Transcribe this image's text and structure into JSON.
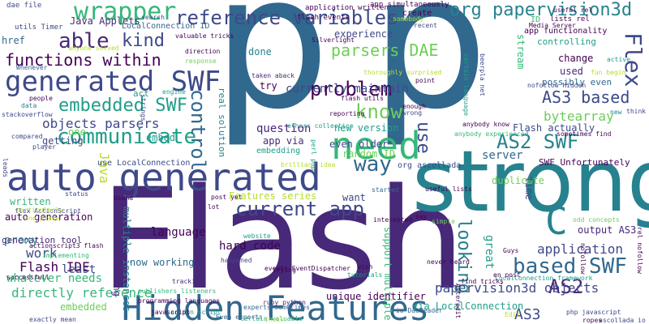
{
  "word_cloud": {
    "background": "#ffffff",
    "palette": [
      "#440154",
      "#482878",
      "#3e4989",
      "#31688e",
      "#26828e",
      "#1f9e89",
      "#35b779",
      "#6ece58",
      "#b5de2b",
      "#fde725"
    ],
    "words": [
      {
        "text": "p",
        "color": "#31688e"
      },
      {
        "text": "p",
        "color": "#31688e"
      },
      {
        "text": "Flash",
        "color": "#482878"
      },
      {
        "text": "strong",
        "color": "#26828e"
      },
      {
        "text": "auto generated",
        "color": "#3e4989"
      },
      {
        "text": "Hidden Features",
        "color": "#31688e"
      },
      {
        "text": "generated SWF",
        "color": "#3e4989"
      },
      {
        "text": "need",
        "color": "#35b779"
      },
      {
        "text": "reference variables",
        "color": "#3e4989"
      },
      {
        "text": "org papervision3d",
        "color": "#26828e"
      },
      {
        "text": "wrapper",
        "color": "#35b779"
      },
      {
        "text": "functions within",
        "color": "#440154"
      },
      {
        "text": "able",
        "color": "#482878"
      },
      {
        "text": "kind",
        "color": "#3e4989"
      },
      {
        "text": "parsers DAE",
        "color": "#6ece58"
      },
      {
        "text": "embedded SWF",
        "color": "#1f9e89"
      },
      {
        "text": "objects parsers",
        "color": "#3e4989"
      },
      {
        "text": "communicate",
        "color": "#1f9e89"
      },
      {
        "text": "current app",
        "color": "#3e4989"
      },
      {
        "text": "AS2 SWF",
        "color": "#26828e"
      },
      {
        "text": "AS3 based",
        "color": "#3e4989"
      },
      {
        "text": "based SWF",
        "color": "#31688e"
      },
      {
        "text": "AS2",
        "color": "#482878"
      },
      {
        "text": "AS3",
        "color": "#3e4989"
      },
      {
        "text": "C",
        "color": "#26828e"
      },
      {
        "text": "Flex",
        "color": "#3e4989"
      },
      {
        "text": "problem",
        "color": "#440154"
      },
      {
        "text": "know",
        "color": "#6ece58"
      },
      {
        "text": "way",
        "color": "#31688e"
      },
      {
        "text": "control",
        "color": "#31688e"
      },
      {
        "text": "use",
        "color": "#3e4989"
      },
      {
        "text": "bytearray",
        "color": "#6ece58"
      },
      {
        "text": "Flash actually",
        "color": "#3e4989"
      },
      {
        "text": "papervision3d objects",
        "color": "#3e4989"
      },
      {
        "text": "language",
        "color": "#440154"
      },
      {
        "text": "hard code",
        "color": "#440154"
      },
      {
        "text": "looking",
        "color": "#26828e"
      },
      {
        "text": "application",
        "color": "#3e4989"
      },
      {
        "text": "output AS3",
        "color": "#482878"
      },
      {
        "text": "Flash IDE",
        "color": "#440154"
      },
      {
        "text": "directly reference",
        "color": "#35b779"
      },
      {
        "text": "embedded",
        "color": "#6ece58"
      },
      {
        "text": "whatever needs",
        "color": "#35b779"
      },
      {
        "text": "least",
        "color": "#3e4989"
      },
      {
        "text": "proxy",
        "color": "#1f9e89"
      },
      {
        "text": "work",
        "color": "#3e4989"
      },
      {
        "text": "Java",
        "color": "#b5de2b"
      },
      {
        "text": "written",
        "color": "#35b779"
      },
      {
        "text": "auto generation",
        "color": "#440154"
      },
      {
        "text": "generation tool",
        "color": "#482878"
      },
      {
        "text": "Features series",
        "color": "#b5de2b"
      },
      {
        "text": "now working",
        "color": "#31688e"
      },
      {
        "text": "currently maintain",
        "color": "#3e4989"
      },
      {
        "text": "question",
        "color": "#482878"
      },
      {
        "text": "new version",
        "color": "#1f9e89"
      },
      {
        "text": "even older",
        "color": "#3e4989"
      },
      {
        "text": "random ID",
        "color": "#6ece58"
      },
      {
        "text": "server",
        "color": "#31688e"
      },
      {
        "text": "duplicate",
        "color": "#6ece58"
      },
      {
        "text": "SWF Unfortunately",
        "color": "#440154"
      },
      {
        "text": "experience",
        "color": "#3e4989"
      },
      {
        "text": "done",
        "color": "#26828e"
      },
      {
        "text": "try",
        "color": "#440154"
      },
      {
        "text": "app via",
        "color": "#482878"
      },
      {
        "text": "embedding",
        "color": "#1f9e89"
      },
      {
        "text": "getting",
        "color": "#3e4989"
      },
      {
        "text": "embed",
        "color": "#1f9e89"
      },
      {
        "text": "one",
        "color": "#6ece58"
      },
      {
        "text": "act",
        "color": "#1f9e89"
      },
      {
        "text": "href",
        "color": "#31688e"
      },
      {
        "text": "Java Applets",
        "color": "#482878"
      },
      {
        "text": "LocalConnection ID",
        "color": "#31688e"
      },
      {
        "text": "create",
        "color": "#440154"
      },
      {
        "text": "ID",
        "color": "#35b779"
      },
      {
        "text": "app functionality",
        "color": "#440154"
      },
      {
        "text": "controlling",
        "color": "#1f9e89"
      },
      {
        "text": "change",
        "color": "#440154"
      },
      {
        "text": "used",
        "color": "#482878"
      },
      {
        "text": "possibly even",
        "color": "#31688e"
      },
      {
        "text": "stream",
        "color": "#35b779"
      },
      {
        "text": "time",
        "color": "#3e4989"
      },
      {
        "text": "want",
        "color": "#3e4989"
      },
      {
        "text": "great",
        "color": "#1f9e89"
      },
      {
        "text": "support multiple",
        "color": "#35b779"
      },
      {
        "text": "unique identifier",
        "color": "#440154"
      },
      {
        "text": "via LocalConnection",
        "color": "#1f9e89"
      },
      {
        "text": "use LocalConnection",
        "color": "#3e4989"
      },
      {
        "text": "org ascollada",
        "color": "#3e4989"
      },
      {
        "text": "multiple instances",
        "color": "#26828e"
      },
      {
        "text": "communicating",
        "color": "#482878"
      },
      {
        "text": "real solution",
        "color": "#26828e"
      },
      {
        "text": "flash events",
        "color": "#440154"
      },
      {
        "text": "application written",
        "color": "#440154"
      },
      {
        "text": "app simultaneously",
        "color": "#440154"
      },
      {
        "text": "lists rel",
        "color": "#440154"
      },
      {
        "text": "utils Timer",
        "color": "#3e4989"
      },
      {
        "text": "dae file",
        "color": "#3e4989"
      },
      {
        "text": "anyone solved",
        "color": "#b5de2b"
      },
      {
        "text": "valuable tricks",
        "color": "#440154"
      },
      {
        "text": "Whenever",
        "color": "#31688e"
      },
      {
        "text": "events EventDispatcher",
        "color": "#440154"
      },
      {
        "text": "publishers listeners",
        "color": "#35b779"
      },
      {
        "text": "programming languages",
        "color": "#440154"
      },
      {
        "text": "tracking",
        "color": "#482878"
      },
      {
        "text": "stackoverflow",
        "color": "#3e4989"
      },
      {
        "text": "ruby python",
        "color": "#482878"
      },
      {
        "text": "Even experts",
        "color": "#31688e"
      },
      {
        "text": "action script",
        "color": "#1f9e89"
      },
      {
        "text": "certain valuable",
        "color": "#35b779"
      },
      {
        "text": "perl php",
        "color": "#1f9e89"
      },
      {
        "text": "LocalConnection framework",
        "color": "#1f9e89"
      },
      {
        "text": "find tricks",
        "color": "#440154"
      },
      {
        "text": "php javascript",
        "color": "#3e4989"
      },
      {
        "text": "ascollada io",
        "color": "#3e4989"
      },
      {
        "text": "en post",
        "color": "#440154"
      },
      {
        "text": "odd concepts",
        "color": "#6ece58"
      },
      {
        "text": "useful lists",
        "color": "#440154"
      },
      {
        "text": "never heard",
        "color": "#440154"
      },
      {
        "text": "anybody know",
        "color": "#440154"
      },
      {
        "text": "anybody experienced",
        "color": "#35b779"
      },
      {
        "text": "nofollow Hidden",
        "color": "#3e4989"
      },
      {
        "text": "fun begin",
        "color": "#b5de2b"
      },
      {
        "text": "Media Server",
        "color": "#440154"
      },
      {
        "text": "sometimes find",
        "color": "#440154"
      },
      {
        "text": "brilliant idea",
        "color": "#b5de2b"
      },
      {
        "text": "flex ActionScript",
        "color": "#3e4989"
      },
      {
        "text": "successfull",
        "color": "#440154"
      },
      {
        "text": "actionscript3 flash",
        "color": "#440154"
      },
      {
        "text": "implementing",
        "color": "#35b779"
      },
      {
        "text": "post yet",
        "color": "#440154"
      },
      {
        "text": "one place",
        "color": "#b5de2b"
      },
      {
        "text": "flash utils",
        "color": "#440154"
      },
      {
        "text": "taken aback",
        "color": "#482878"
      },
      {
        "text": "others collection",
        "color": "#1f9e89"
      },
      {
        "text": "beerpla net",
        "color": "#3e4989"
      },
      {
        "text": "think",
        "color": "#3e4989"
      },
      {
        "text": "new",
        "color": "#26828e"
      },
      {
        "text": "active",
        "color": "#1f9e89"
      },
      {
        "text": "Guys",
        "color": "#440154"
      },
      {
        "text": "say",
        "color": "#440154"
      },
      {
        "text": "simple",
        "color": "#6ece58"
      },
      {
        "text": "javascript",
        "color": "#440154"
      },
      {
        "text": "status",
        "color": "#3e4989"
      },
      {
        "text": "leads",
        "color": "#3e4989"
      },
      {
        "text": "Afteredit",
        "color": "#440154"
      },
      {
        "text": "io DaeReader",
        "color": "#31688e"
      },
      {
        "text": "Edit",
        "color": "#b5de2b"
      },
      {
        "text": "ropes",
        "color": "#440154"
      },
      {
        "text": "interested",
        "color": "#440154"
      },
      {
        "text": "exactly mean",
        "color": "#3e4989"
      },
      {
        "text": "website",
        "color": "#1f9e89"
      },
      {
        "text": "experts sometimes",
        "color": "#31688e"
      },
      {
        "text": "trying",
        "color": "#440154"
      },
      {
        "text": "wish",
        "color": "#440154"
      },
      {
        "text": "check",
        "color": "#b5de2b"
      },
      {
        "text": "tutorials",
        "color": "#1f9e89"
      },
      {
        "text": "happened",
        "color": "#3e4989"
      },
      {
        "text": "started",
        "color": "#31688e"
      },
      {
        "text": "Usend",
        "color": "#440154"
      },
      {
        "text": "compared",
        "color": "#3e4989"
      },
      {
        "text": "player",
        "color": "#3e4989"
      },
      {
        "text": "data",
        "color": "#26828e"
      },
      {
        "text": "people",
        "color": "#440154"
      },
      {
        "text": "reporting",
        "color": "#440154"
      },
      {
        "text": "lot",
        "color": "#440154"
      },
      {
        "text": "recent",
        "color": "#3e4989"
      },
      {
        "text": "search",
        "color": "#3e4989"
      },
      {
        "text": "direction",
        "color": "#440154"
      },
      {
        "text": "response",
        "color": "#6ece58"
      },
      {
        "text": "engine",
        "color": "#1f9e89"
      },
      {
        "text": "Silverlight",
        "color": "#440154"
      },
      {
        "text": "somebody",
        "color": "#b5de2b"
      },
      {
        "text": "nofollow",
        "color": "#440154"
      },
      {
        "text": "point",
        "color": "#440154"
      },
      {
        "text": "enough",
        "color": "#440154"
      },
      {
        "text": "wrong",
        "color": "#3e4989"
      },
      {
        "text": "certain language",
        "color": "#1f9e89"
      },
      {
        "text": "thoroughly surprised",
        "color": "#b5de2b"
      },
      {
        "text": "particularly",
        "color": "#b5de2b"
      },
      {
        "text": "strings",
        "color": "#3e4989"
      },
      {
        "text": "rel nofollow",
        "color": "#440154"
      },
      {
        "text": "useful rel",
        "color": "#440154"
      }
    ]
  }
}
